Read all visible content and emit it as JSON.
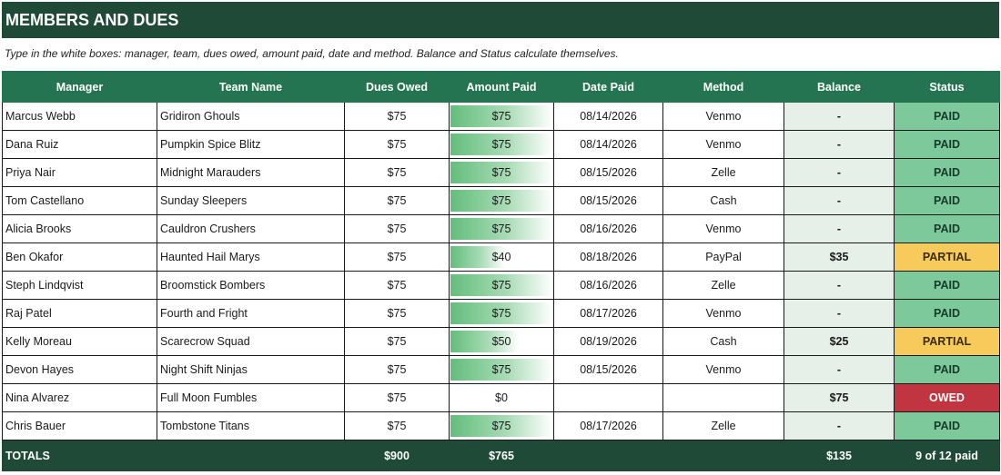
{
  "title": "MEMBERS AND DUES",
  "instructions": "Type in the white boxes: manager, team, dues owed, amount paid, date and method. Balance and Status calculate themselves.",
  "columns": [
    "Manager",
    "Team Name",
    "Dues Owed",
    "Amount Paid",
    "Date Paid",
    "Method",
    "Balance",
    "Status"
  ],
  "rows": [
    {
      "manager": "Marcus Webb",
      "team": "Gridiron Ghouls",
      "dues": "$75",
      "paid": "$75",
      "paid_fraction": 1.0,
      "date": "08/14/2026",
      "method": "Venmo",
      "balance": "-",
      "status": "PAID"
    },
    {
      "manager": "Dana Ruiz",
      "team": "Pumpkin Spice Blitz",
      "dues": "$75",
      "paid": "$75",
      "paid_fraction": 1.0,
      "date": "08/14/2026",
      "method": "Venmo",
      "balance": "-",
      "status": "PAID"
    },
    {
      "manager": "Priya Nair",
      "team": "Midnight Marauders",
      "dues": "$75",
      "paid": "$75",
      "paid_fraction": 1.0,
      "date": "08/15/2026",
      "method": "Zelle",
      "balance": "-",
      "status": "PAID"
    },
    {
      "manager": "Tom Castellano",
      "team": "Sunday Sleepers",
      "dues": "$75",
      "paid": "$75",
      "paid_fraction": 1.0,
      "date": "08/15/2026",
      "method": "Cash",
      "balance": "-",
      "status": "PAID"
    },
    {
      "manager": "Alicia Brooks",
      "team": "Cauldron Crushers",
      "dues": "$75",
      "paid": "$75",
      "paid_fraction": 1.0,
      "date": "08/16/2026",
      "method": "Venmo",
      "balance": "-",
      "status": "PAID"
    },
    {
      "manager": "Ben Okafor",
      "team": "Haunted Hail Marys",
      "dues": "$75",
      "paid": "$40",
      "paid_fraction": 0.533,
      "date": "08/18/2026",
      "method": "PayPal",
      "balance": "$35",
      "status": "PARTIAL"
    },
    {
      "manager": "Steph Lindqvist",
      "team": "Broomstick Bombers",
      "dues": "$75",
      "paid": "$75",
      "paid_fraction": 1.0,
      "date": "08/16/2026",
      "method": "Zelle",
      "balance": "-",
      "status": "PAID"
    },
    {
      "manager": "Raj Patel",
      "team": "Fourth and Fright",
      "dues": "$75",
      "paid": "$75",
      "paid_fraction": 1.0,
      "date": "08/17/2026",
      "method": "Venmo",
      "balance": "-",
      "status": "PAID"
    },
    {
      "manager": "Kelly Moreau",
      "team": "Scarecrow Squad",
      "dues": "$75",
      "paid": "$50",
      "paid_fraction": 0.667,
      "date": "08/19/2026",
      "method": "Cash",
      "balance": "$25",
      "status": "PARTIAL"
    },
    {
      "manager": "Devon Hayes",
      "team": "Night Shift Ninjas",
      "dues": "$75",
      "paid": "$75",
      "paid_fraction": 1.0,
      "date": "08/15/2026",
      "method": "Venmo",
      "balance": "-",
      "status": "PAID"
    },
    {
      "manager": "Nina Alvarez",
      "team": "Full Moon Fumbles",
      "dues": "$75",
      "paid": "$0",
      "paid_fraction": 0.0,
      "date": "",
      "method": "",
      "balance": "$75",
      "status": "OWED"
    },
    {
      "manager": "Chris Bauer",
      "team": "Tombstone Titans",
      "dues": "$75",
      "paid": "$75",
      "paid_fraction": 1.0,
      "date": "08/17/2026",
      "method": "Zelle",
      "balance": "-",
      "status": "PAID"
    }
  ],
  "totals": {
    "label": "TOTALS",
    "dues": "$900",
    "paid": "$765",
    "balance": "$135",
    "status": "9 of 12 paid"
  },
  "colors": {
    "title_bg": "#1f4a37",
    "header_bg": "#257451",
    "paid": "#7ec99b",
    "partial": "#f7ca5c",
    "owed": "#c0353f",
    "balance_bg": "#e7efe9"
  }
}
